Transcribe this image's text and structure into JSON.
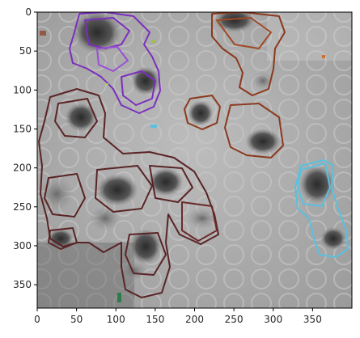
{
  "plot": {
    "x_ticks": [
      0,
      50,
      100,
      150,
      200,
      250,
      300,
      350
    ],
    "y_ticks": [
      0,
      50,
      100,
      150,
      200,
      250,
      300,
      350
    ],
    "x_range": [
      0,
      400
    ],
    "y_range": [
      380,
      0
    ]
  },
  "overlay_colors": {
    "purple": "#7b2fbe",
    "rust": "#8b3a1e",
    "maroon": "#5a2426",
    "cyan": "#5bc0de"
  }
}
